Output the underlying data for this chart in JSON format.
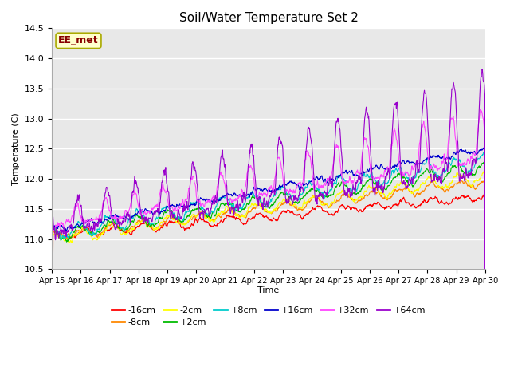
{
  "title": "Soil/Water Temperature Set 2",
  "xlabel": "Time",
  "ylabel": "Temperature (C)",
  "ylim": [
    10.5,
    14.5
  ],
  "annotation": "EE_met",
  "series": [
    {
      "label": "-16cm",
      "color": "#ff0000"
    },
    {
      "label": "-8cm",
      "color": "#ff8800"
    },
    {
      "label": "-2cm",
      "color": "#ffff00"
    },
    {
      "label": "+2cm",
      "color": "#00bb00"
    },
    {
      "label": "+8cm",
      "color": "#00cccc"
    },
    {
      "label": "+16cm",
      "color": "#0000cc"
    },
    {
      "label": "+32cm",
      "color": "#ff44ff"
    },
    {
      "label": "+64cm",
      "color": "#9900cc"
    }
  ],
  "xtick_labels": [
    "Apr 15",
    "Apr 16",
    "Apr 17",
    "Apr 18",
    "Apr 19",
    "Apr 20",
    "Apr 21",
    "Apr 22",
    "Apr 23",
    "Apr 24",
    "Apr 25",
    "Apr 26",
    "Apr 27",
    "Apr 28",
    "Apr 29",
    "Apr 30"
  ],
  "plot_bg_color": "#e8e8e8",
  "n_points": 1440,
  "seed": 42
}
